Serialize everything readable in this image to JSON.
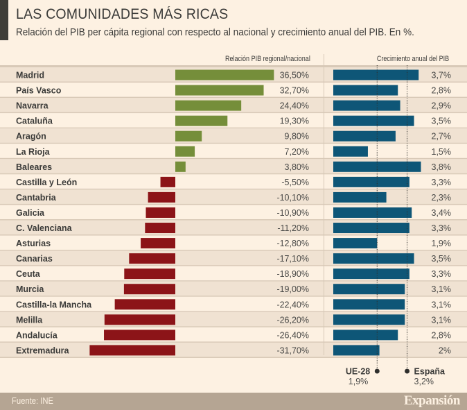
{
  "header": {
    "title": "LAS COMUNIDADES MÁS RICAS",
    "subtitle": "Relación del PIB per cápita regional con respecto al nacional y crecimiento anual del PIB. En %."
  },
  "footer": {
    "source": "Fuente: INE",
    "brand": "Expansión"
  },
  "colors": {
    "background": "#fdf1e2",
    "row_alt": "#f0e2d2",
    "row_line": "#d8c9b7",
    "positive": "#758e3a",
    "negative": "#8c1418",
    "growth": "#0e5677",
    "footer": "#b5a593",
    "title_bar": "#3f3e39"
  },
  "chart_data": [
    {
      "type": "bar",
      "orientation": "horizontal",
      "title": "Relación PIB regional/nacional",
      "unit": "%",
      "categories": [
        "Madrid",
        "País Vasco",
        "Navarra",
        "Cataluña",
        "Aragón",
        "La Rioja",
        "Baleares",
        "Castilla y León",
        "Cantabria",
        "Galicia",
        "C. Valenciana",
        "Asturias",
        "Canarias",
        "Ceuta",
        "Murcia",
        "Castilla-la Mancha",
        "Melilla",
        "Andalucía",
        "Extremadura"
      ],
      "values": [
        36.5,
        32.7,
        24.4,
        19.3,
        9.8,
        7.2,
        3.8,
        -5.5,
        -10.1,
        -10.9,
        -11.2,
        -12.8,
        -17.1,
        -18.9,
        -19.0,
        -22.4,
        -26.2,
        -26.4,
        -31.7
      ],
      "labels": [
        "36,50%",
        "32,70%",
        "24,40%",
        "19,30%",
        "9,80%",
        "7,20%",
        "3,80%",
        "-5,50%",
        "-10,10%",
        "-10,90%",
        "-11,20%",
        "-12,80%",
        "-17,10%",
        "-18,90%",
        "-19,00%",
        "-22,40%",
        "-26,20%",
        "-26,40%",
        "-31,70%"
      ],
      "xlim": [
        -33,
        38
      ],
      "grid": false
    },
    {
      "type": "bar",
      "orientation": "horizontal",
      "title": "Crecimiento anual del PIB",
      "unit": "%",
      "categories": [
        "Madrid",
        "País Vasco",
        "Navarra",
        "Cataluña",
        "Aragón",
        "La Rioja",
        "Baleares",
        "Castilla y León",
        "Cantabria",
        "Galicia",
        "C. Valenciana",
        "Asturias",
        "Canarias",
        "Ceuta",
        "Murcia",
        "Castilla-la Mancha",
        "Melilla",
        "Andalucía",
        "Extremadura"
      ],
      "values": [
        3.7,
        2.8,
        2.9,
        3.5,
        2.7,
        1.5,
        3.8,
        3.3,
        2.3,
        3.4,
        3.3,
        1.9,
        3.5,
        3.3,
        3.1,
        3.1,
        3.1,
        2.8,
        2.0
      ],
      "labels": [
        "3,7%",
        "2,8%",
        "2,9%",
        "3,5%",
        "2,7%",
        "1,5%",
        "3,8%",
        "3,3%",
        "2,3%",
        "3,4%",
        "3,3%",
        "1,9%",
        "3,5%",
        "3,3%",
        "3,1%",
        "3,1%",
        "3,1%",
        "2,8%",
        "2%"
      ],
      "xlim": [
        0,
        4
      ],
      "reference_lines": [
        {
          "name": "UE-28",
          "value": 1.9,
          "label": "1,9%"
        },
        {
          "name": "España",
          "value": 3.2,
          "label": "3,2%"
        }
      ],
      "grid": false
    }
  ]
}
